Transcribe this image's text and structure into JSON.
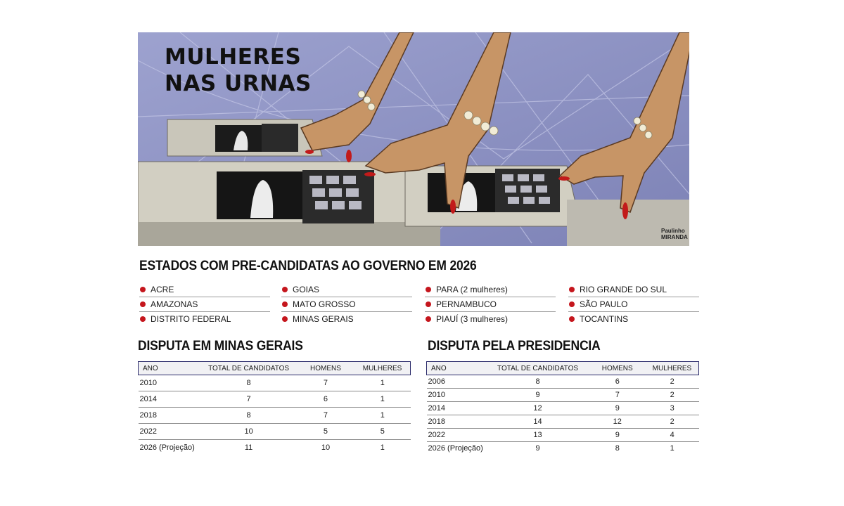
{
  "headline": {
    "line1": "MULHERES",
    "line2": "NAS URNAS"
  },
  "credit": {
    "line1": "Paulinho",
    "line2": "MIRANDA"
  },
  "colors": {
    "bullet": "#c5161d",
    "nails": "#c21a1a",
    "skin": "#c79566",
    "background": "#8a8fc0",
    "table_border": "#2a2a6a"
  },
  "states_section": {
    "title": "ESTADOS COM PRE-CANDIDATAS AO GOVERNO EM 2026",
    "columns": [
      [
        "ACRE",
        "AMAZONAS",
        "DISTRITO FEDERAL"
      ],
      [
        "GOIAS",
        "MATO GROSSO",
        "MINAS GERAIS"
      ],
      [
        "PARA (2 mulheres)",
        "PERNAMBUCO",
        "PIAUÍ (3 mulheres)"
      ],
      [
        "RIO GRANDE DO SUL",
        "SÃO PAULO",
        "TOCANTINS"
      ]
    ]
  },
  "minas": {
    "title": "DISPUTA EM MINAS GERAIS",
    "headers": [
      "ANO",
      "TOTAL DE CANDIDATOS",
      "HOMENS",
      "MULHERES"
    ],
    "rows": [
      [
        "2010",
        "8",
        "7",
        "1"
      ],
      [
        "2014",
        "7",
        "6",
        "1"
      ],
      [
        "2018",
        "8",
        "7",
        "1"
      ],
      [
        "2022",
        "10",
        "5",
        "5"
      ],
      [
        "2026 (Projeção)",
        "11",
        "10",
        "1"
      ]
    ]
  },
  "presidencia": {
    "title": "DISPUTA PELA PRESIDENCIA",
    "headers": [
      "ANO",
      "TOTAL DE CANDIDATOS",
      "HOMENS",
      "MULHERES"
    ],
    "rows": [
      [
        "2006",
        "8",
        "6",
        "2"
      ],
      [
        "2010",
        "9",
        "7",
        "2"
      ],
      [
        "2014",
        "12",
        "9",
        "3"
      ],
      [
        "2018",
        "14",
        "12",
        "2"
      ],
      [
        "2022",
        "13",
        "9",
        "4"
      ],
      [
        "2026 (Projeção)",
        "9",
        "8",
        "1"
      ]
    ]
  }
}
